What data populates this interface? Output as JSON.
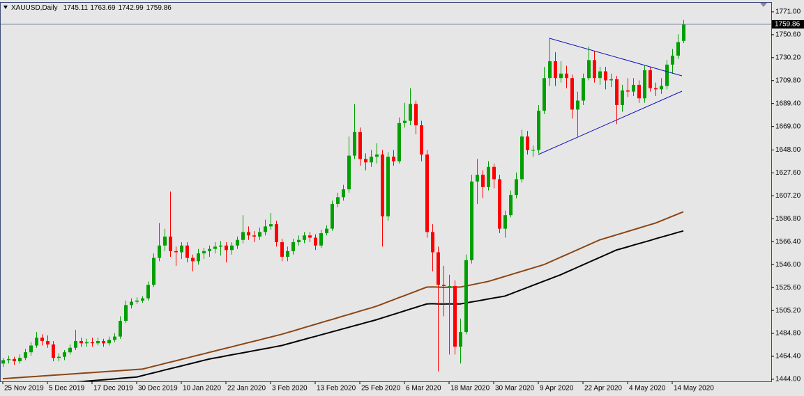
{
  "chart_data": {
    "type": "candlestick",
    "title": "XAUUSD,Daily",
    "up_color": "#00a000",
    "down_color": "#ff0000",
    "ylim": [
      1442.1,
      1778.4
    ],
    "yticks": [
      {
        "value": 1771,
        "label": "1771.00"
      },
      {
        "value": 1750.6,
        "label": "1750.60"
      },
      {
        "value": 1730.2,
        "label": "1730.20"
      },
      {
        "value": 1709.8,
        "label": "1709.80"
      },
      {
        "value": 1689.4,
        "label": "1689.40"
      },
      {
        "value": 1669,
        "label": "1669.00"
      },
      {
        "value": 1648,
        "label": "1648.00"
      },
      {
        "value": 1627.6,
        "label": "1627.60"
      },
      {
        "value": 1607.2,
        "label": "1607.20"
      },
      {
        "value": 1586.8,
        "label": "1586.80"
      },
      {
        "value": 1566.4,
        "label": "1566.40"
      },
      {
        "value": 1546,
        "label": "1546.00"
      },
      {
        "value": 1525.6,
        "label": "1525.60"
      },
      {
        "value": 1505.2,
        "label": "1505.20"
      },
      {
        "value": 1484.8,
        "label": "1484.80"
      },
      {
        "value": 1464.4,
        "label": "1464.40"
      },
      {
        "value": 1444,
        "label": "1444.00"
      }
    ],
    "categories": [
      "25 Nov 2019",
      null,
      null,
      null,
      null,
      null,
      null,
      null,
      "5 Dec 2019",
      null,
      null,
      null,
      null,
      null,
      null,
      null,
      "17 Dec 2019",
      null,
      null,
      null,
      null,
      null,
      null,
      null,
      "30 Dec 2019",
      null,
      null,
      null,
      null,
      null,
      null,
      null,
      "10 Jan 2020",
      null,
      null,
      null,
      null,
      null,
      null,
      null,
      "22 Jan 2020",
      null,
      null,
      null,
      null,
      null,
      null,
      null,
      "3 Feb 2020",
      null,
      null,
      null,
      null,
      null,
      null,
      null,
      "13 Feb 2020",
      null,
      null,
      null,
      null,
      null,
      null,
      null,
      "25 Feb 2020",
      null,
      null,
      null,
      null,
      null,
      null,
      null,
      "6 Mar 2020",
      null,
      null,
      null,
      null,
      null,
      null,
      null,
      "18 Mar 2020",
      null,
      null,
      null,
      null,
      null,
      null,
      null,
      "30 Mar 2020",
      null,
      null,
      null,
      null,
      null,
      null,
      null,
      "9 Apr 2020",
      null,
      null,
      null,
      null,
      null,
      null,
      null,
      "22 Apr 2020",
      null,
      null,
      null,
      null,
      null,
      null,
      null,
      "4 May 2020",
      null,
      null,
      null,
      null,
      null,
      null,
      null,
      "14 May 2020",
      null,
      null
    ],
    "ohlc": [
      [
        1458,
        1463,
        1455,
        1461
      ],
      [
        1461,
        1465,
        1458,
        1462
      ],
      [
        1462,
        1464,
        1457,
        1460
      ],
      [
        1460,
        1466,
        1458,
        1463
      ],
      [
        1463,
        1471,
        1461,
        1468
      ],
      [
        1468,
        1477,
        1465,
        1474
      ],
      [
        1474,
        1486,
        1472,
        1481
      ],
      [
        1481,
        1484,
        1474,
        1478
      ],
      [
        1478,
        1483,
        1472,
        1475
      ],
      [
        1475,
        1478,
        1460,
        1463
      ],
      [
        1463,
        1467,
        1460,
        1464
      ],
      [
        1464,
        1470,
        1461,
        1468
      ],
      [
        1468,
        1475,
        1466,
        1472
      ],
      [
        1472,
        1488,
        1470,
        1478
      ],
      [
        1478,
        1481,
        1473,
        1476
      ],
      [
        1476,
        1480,
        1473,
        1477
      ],
      [
        1477,
        1481,
        1473,
        1476
      ],
      [
        1476,
        1481,
        1474,
        1478
      ],
      [
        1478,
        1480,
        1473,
        1476
      ],
      [
        1476,
        1482,
        1474,
        1479
      ],
      [
        1479,
        1485,
        1477,
        1482
      ],
      [
        1482,
        1500,
        1480,
        1496
      ],
      [
        1496,
        1514,
        1494,
        1510
      ],
      [
        1510,
        1516,
        1507,
        1513
      ],
      [
        1513,
        1517,
        1511,
        1514
      ],
      [
        1514,
        1518,
        1512,
        1516
      ],
      [
        1516,
        1531,
        1514,
        1528
      ],
      [
        1528,
        1556,
        1526,
        1552
      ],
      [
        1552,
        1583,
        1549,
        1563
      ],
      [
        1563,
        1578,
        1558,
        1571
      ],
      [
        1571,
        1611,
        1553,
        1558
      ],
      [
        1558,
        1562,
        1545,
        1557
      ],
      [
        1557,
        1566,
        1551,
        1563
      ],
      [
        1563,
        1566,
        1548,
        1552
      ],
      [
        1552,
        1555,
        1540,
        1549
      ],
      [
        1549,
        1560,
        1546,
        1556
      ],
      [
        1556,
        1561,
        1551,
        1558
      ],
      [
        1558,
        1563,
        1553,
        1560
      ],
      [
        1560,
        1566,
        1556,
        1562
      ],
      [
        1562,
        1567,
        1554,
        1563
      ],
      [
        1563,
        1566,
        1548,
        1559
      ],
      [
        1559,
        1566,
        1555,
        1563
      ],
      [
        1563,
        1571,
        1560,
        1568
      ],
      [
        1568,
        1590,
        1565,
        1575
      ],
      [
        1575,
        1580,
        1568,
        1572
      ],
      [
        1572,
        1576,
        1566,
        1571
      ],
      [
        1571,
        1579,
        1568,
        1575
      ],
      [
        1575,
        1586,
        1572,
        1580
      ],
      [
        1580,
        1592,
        1577,
        1582
      ],
      [
        1582,
        1585,
        1562,
        1566
      ],
      [
        1566,
        1569,
        1549,
        1553
      ],
      [
        1553,
        1562,
        1549,
        1558
      ],
      [
        1558,
        1569,
        1555,
        1566
      ],
      [
        1566,
        1572,
        1563,
        1568
      ],
      [
        1568,
        1575,
        1565,
        1572
      ],
      [
        1572,
        1575,
        1566,
        1570
      ],
      [
        1570,
        1573,
        1559,
        1563
      ],
      [
        1563,
        1577,
        1561,
        1574
      ],
      [
        1574,
        1581,
        1572,
        1578
      ],
      [
        1578,
        1603,
        1576,
        1600
      ],
      [
        1600,
        1610,
        1597,
        1606
      ],
      [
        1606,
        1617,
        1603,
        1613
      ],
      [
        1613,
        1660,
        1610,
        1643
      ],
      [
        1643,
        1689,
        1640,
        1664
      ],
      [
        1664,
        1668,
        1634,
        1640
      ],
      [
        1640,
        1645,
        1630,
        1637
      ],
      [
        1637,
        1648,
        1633,
        1642
      ],
      [
        1642,
        1654,
        1636,
        1644
      ],
      [
        1644,
        1648,
        1562,
        1589
      ],
      [
        1589,
        1646,
        1585,
        1642
      ],
      [
        1642,
        1648,
        1634,
        1638
      ],
      [
        1638,
        1677,
        1636,
        1672
      ],
      [
        1672,
        1690,
        1668,
        1674
      ],
      [
        1674,
        1703,
        1670,
        1689
      ],
      [
        1689,
        1692,
        1662,
        1670
      ],
      [
        1670,
        1674,
        1638,
        1644
      ],
      [
        1644,
        1648,
        1570,
        1575
      ],
      [
        1575,
        1582,
        1540,
        1557
      ],
      [
        1557,
        1562,
        1451,
        1528
      ],
      [
        1528,
        1545,
        1500,
        1527
      ],
      [
        1527,
        1537,
        1466,
        1527
      ],
      [
        1527,
        1532,
        1466,
        1473
      ],
      [
        1473,
        1498,
        1458,
        1486
      ],
      [
        1486,
        1555,
        1484,
        1550
      ],
      [
        1550,
        1626,
        1547,
        1620
      ],
      [
        1620,
        1640,
        1600,
        1626
      ],
      [
        1626,
        1630,
        1605,
        1615
      ],
      [
        1615,
        1638,
        1612,
        1633
      ],
      [
        1633,
        1636,
        1614,
        1622
      ],
      [
        1622,
        1626,
        1574,
        1578
      ],
      [
        1578,
        1594,
        1570,
        1590
      ],
      [
        1590,
        1612,
        1588,
        1608
      ],
      [
        1608,
        1628,
        1605,
        1622
      ],
      [
        1622,
        1666,
        1619,
        1660
      ],
      [
        1660,
        1665,
        1644,
        1648
      ],
      [
        1648,
        1652,
        1642,
        1648
      ],
      [
        1648,
        1688,
        1645,
        1683
      ],
      [
        1683,
        1722,
        1680,
        1712
      ],
      [
        1712,
        1748,
        1705,
        1727
      ],
      [
        1727,
        1735,
        1705,
        1712
      ],
      [
        1712,
        1727,
        1708,
        1716
      ],
      [
        1716,
        1723,
        1703,
        1712
      ],
      [
        1712,
        1715,
        1676,
        1684
      ],
      [
        1684,
        1700,
        1660,
        1692
      ],
      [
        1692,
        1716,
        1688,
        1712
      ],
      [
        1712,
        1740,
        1710,
        1728
      ],
      [
        1728,
        1736,
        1708,
        1712
      ],
      [
        1712,
        1722,
        1706,
        1718
      ],
      [
        1718,
        1722,
        1702,
        1710
      ],
      [
        1710,
        1716,
        1704,
        1711
      ],
      [
        1711,
        1714,
        1671,
        1688
      ],
      [
        1688,
        1706,
        1682,
        1701
      ],
      [
        1701,
        1712,
        1695,
        1700
      ],
      [
        1700,
        1712,
        1696,
        1706
      ],
      [
        1706,
        1710,
        1690,
        1694
      ],
      [
        1694,
        1723,
        1690,
        1719
      ],
      [
        1719,
        1722,
        1700,
        1703
      ],
      [
        1703,
        1708,
        1696,
        1702
      ],
      [
        1702,
        1712,
        1698,
        1705
      ],
      [
        1705,
        1728,
        1702,
        1724
      ],
      [
        1724,
        1738,
        1716,
        1732
      ],
      [
        1732,
        1751,
        1729,
        1744
      ],
      [
        1745.11,
        1763.69,
        1742.99,
        1759.86
      ]
    ],
    "lines": [
      {
        "color": "#8b4513",
        "values": [
          1444.5,
          1444.8,
          1445.2,
          1445.5,
          1445.9,
          1446.2,
          1446.5,
          1446.9,
          1447.2,
          1447.6,
          1447.9,
          1448.2,
          1448.6,
          1448.9,
          1449.3,
          1449.6,
          1449.9,
          1450.3,
          1450.6,
          1451.0,
          1451.3,
          1451.6,
          1452.0,
          1452.3,
          1452.7,
          1453.0,
          1454.2,
          1455.5,
          1456.7,
          1458.0,
          1459.2,
          1460.4,
          1461.7,
          1462.9,
          1464.2,
          1465.4,
          1466.6,
          1467.9,
          1469.1,
          1470.4,
          1471.6,
          1472.8,
          1474.1,
          1475.3,
          1476.6,
          1477.8,
          1479.0,
          1480.3,
          1481.5,
          1482.8,
          1484.0,
          1485.5,
          1486.9,
          1488.4,
          1489.9,
          1491.4,
          1492.8,
          1494.3,
          1495.8,
          1497.2,
          1498.7,
          1500.2,
          1501.6,
          1503.1,
          1504.6,
          1506.1,
          1507.5,
          1509.0,
          1510.9,
          1512.8,
          1514.7,
          1516.6,
          1518.4,
          1520.3,
          1522.2,
          1524.1,
          1526.0,
          1526.2,
          1526.0,
          1525.8,
          1525.9,
          1526.1,
          1526.0,
          1527,
          1528,
          1529,
          1530,
          1531,
          1532.5,
          1534,
          1535.5,
          1537,
          1538.5,
          1540,
          1541.5,
          1543,
          1544.5,
          1546,
          1548.2,
          1550.4,
          1552.6,
          1554.8,
          1557,
          1559.2,
          1561.4,
          1563.6,
          1565.8,
          1568,
          1569.5,
          1571,
          1572.5,
          1574,
          1575.5,
          1577,
          1578.5,
          1580,
          1581.5,
          1583,
          1585,
          1587,
          1589,
          1591,
          1593
        ]
      },
      {
        "color": "#000000",
        "values": [
          1436.0,
          1436.4,
          1436.8,
          1437.3,
          1437.7,
          1438.1,
          1438.5,
          1438.9,
          1439.3,
          1439.8,
          1440.2,
          1440.6,
          1441.0,
          1441.4,
          1441.8,
          1442.3,
          1442.7,
          1443.1,
          1443.5,
          1443.9,
          1444.3,
          1444.8,
          1445.2,
          1445.6,
          1446.0,
          1447.2,
          1448.5,
          1449.7,
          1450.9,
          1452.2,
          1453.4,
          1454.6,
          1455.8,
          1457.1,
          1458.3,
          1459.5,
          1460.8,
          1462.0,
          1462.9,
          1463.8,
          1464.8,
          1465.7,
          1466.6,
          1467.5,
          1468.4,
          1469.4,
          1470.3,
          1471.2,
          1472.1,
          1473.1,
          1474.0,
          1475.4,
          1476.7,
          1478.1,
          1479.4,
          1480.8,
          1482.1,
          1483.5,
          1484.8,
          1486.2,
          1487.5,
          1488.9,
          1490.2,
          1491.6,
          1492.9,
          1494.3,
          1495.6,
          1497.0,
          1498.6,
          1500.1,
          1501.7,
          1503.2,
          1504.8,
          1506.4,
          1507.9,
          1509.5,
          1511.0,
          1511.2,
          1511.0,
          1510.9,
          1511.1,
          1511.0,
          1511.0,
          1511.9,
          1512.8,
          1513.6,
          1514.5,
          1515.4,
          1516.3,
          1517.1,
          1518.0,
          1519.9,
          1521.8,
          1523.7,
          1525.6,
          1527.5,
          1529.4,
          1531.3,
          1533.2,
          1535.1,
          1537.0,
          1539.2,
          1541.4,
          1543.6,
          1545.8,
          1548.0,
          1550.2,
          1552.4,
          1554.6,
          1556.8,
          1559.0,
          1560.4,
          1561.8,
          1563.3,
          1564.7,
          1566.1,
          1567.5,
          1569.0,
          1570.4,
          1571.8,
          1573.2,
          1574.7,
          1576.0
        ]
      }
    ]
  }
}
